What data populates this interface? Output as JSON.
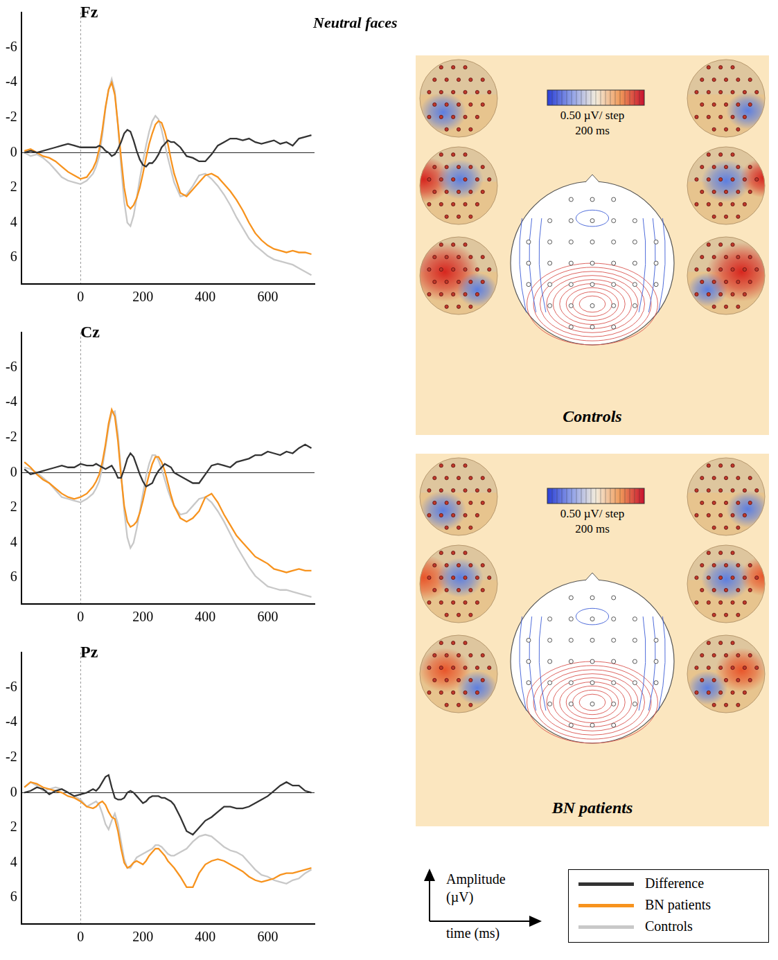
{
  "title": "Neutral faces",
  "legend": "bottom right",
  "axis_key": {
    "y": "Amplitude (µV)",
    "x": "time (ms)"
  },
  "topomaps": [
    {
      "label": "Controls",
      "scale_label": "0.50 µV/ step",
      "time": "200 ms"
    },
    {
      "label": "BN patients",
      "scale_label": "0.50 µV/ step",
      "time": "200 ms"
    }
  ],
  "chart_data": [
    {
      "type": "line",
      "title": "Fz",
      "x": [
        -180,
        -160,
        -140,
        -120,
        -100,
        -80,
        -60,
        -40,
        -20,
        0,
        20,
        40,
        50,
        60,
        70,
        80,
        90,
        100,
        110,
        120,
        130,
        140,
        150,
        160,
        170,
        180,
        190,
        200,
        210,
        220,
        230,
        240,
        250,
        260,
        270,
        280,
        290,
        300,
        320,
        340,
        360,
        380,
        400,
        420,
        440,
        460,
        480,
        500,
        520,
        540,
        560,
        580,
        600,
        620,
        640,
        660,
        680,
        700,
        720,
        740
      ],
      "xlim": [
        -190,
        750
      ],
      "xticks": [
        0,
        200,
        400,
        600
      ],
      "ylim": [
        -8,
        7.5
      ],
      "yticks": [
        -6,
        -4,
        -2,
        0,
        2,
        4,
        6
      ],
      "series": [
        {
          "name": "Difference",
          "color": "#333333",
          "values": [
            0,
            -0.1,
            0,
            -0.1,
            -0.2,
            -0.3,
            -0.4,
            -0.5,
            -0.4,
            -0.3,
            -0.3,
            -0.3,
            -0.3,
            -0.4,
            -0.3,
            -0.1,
            0,
            0.2,
            0.1,
            -0.2,
            -0.6,
            -1.1,
            -1.3,
            -1.2,
            -0.7,
            -0.1,
            0.4,
            0.7,
            0.8,
            0.6,
            0.6,
            0.4,
            0.1,
            -0.3,
            -0.5,
            -0.7,
            -0.6,
            -0.6,
            -0.3,
            0.2,
            0.3,
            0.5,
            0.5,
            0.1,
            -0.4,
            -0.6,
            -0.8,
            -0.8,
            -0.7,
            -0.8,
            -0.6,
            -0.5,
            -0.6,
            -0.7,
            -0.5,
            -0.6,
            -0.4,
            -0.8,
            -0.9,
            -1.0
          ]
        },
        {
          "name": "BN patients",
          "color": "#f7931e",
          "values": [
            -0.1,
            -0.2,
            0,
            0.2,
            0.3,
            0.5,
            0.8,
            1.1,
            1.3,
            1.5,
            1.4,
            0.9,
            0.5,
            -0.2,
            -1.3,
            -2.6,
            -3.6,
            -4.0,
            -3.3,
            -1.6,
            0.3,
            2.0,
            3.0,
            3.2,
            3.0,
            2.6,
            2.0,
            1.2,
            0.3,
            -0.5,
            -1.1,
            -1.6,
            -1.8,
            -1.7,
            -1.2,
            -0.5,
            0.4,
            1.2,
            2.3,
            2.5,
            2.1,
            1.7,
            1.3,
            1.2,
            1.4,
            1.8,
            2.2,
            2.7,
            3.3,
            4.0,
            4.6,
            5.0,
            5.3,
            5.5,
            5.6,
            5.7,
            5.6,
            5.7,
            5.7,
            5.8
          ]
        },
        {
          "name": "Controls",
          "color": "#c8c8c8",
          "values": [
            0,
            0.2,
            0.1,
            0.3,
            0.6,
            1.0,
            1.4,
            1.6,
            1.7,
            1.8,
            1.6,
            1.2,
            0.8,
            0.2,
            -1.0,
            -2.5,
            -3.6,
            -4.2,
            -3.5,
            -1.5,
            0.8,
            2.8,
            4.0,
            4.2,
            3.6,
            2.6,
            1.5,
            0.5,
            -0.4,
            -1.2,
            -1.8,
            -2.1,
            -1.9,
            -1.3,
            -0.5,
            0.3,
            1.0,
            1.7,
            2.5,
            2.4,
            1.9,
            1.3,
            1.2,
            1.5,
            1.9,
            2.4,
            3.0,
            3.7,
            4.3,
            4.9,
            5.3,
            5.6,
            5.9,
            6.1,
            6.2,
            6.3,
            6.4,
            6.6,
            6.8,
            7.0
          ]
        }
      ]
    },
    {
      "type": "line",
      "title": "Cz",
      "x": [
        -180,
        -160,
        -140,
        -120,
        -100,
        -80,
        -60,
        -40,
        -20,
        0,
        20,
        40,
        50,
        60,
        70,
        80,
        90,
        100,
        110,
        120,
        130,
        140,
        150,
        160,
        170,
        180,
        190,
        200,
        210,
        220,
        230,
        240,
        250,
        260,
        270,
        280,
        290,
        300,
        320,
        340,
        360,
        380,
        400,
        420,
        440,
        460,
        480,
        500,
        520,
        540,
        560,
        580,
        600,
        620,
        640,
        660,
        680,
        700,
        720,
        740
      ],
      "xlim": [
        -190,
        750
      ],
      "xticks": [
        0,
        200,
        400,
        600
      ],
      "ylim": [
        -8,
        7.5
      ],
      "yticks": [
        -6,
        -4,
        -2,
        0,
        2,
        4,
        6
      ],
      "series": [
        {
          "name": "Difference",
          "color": "#333333",
          "values": [
            -0.2,
            0.1,
            0,
            -0.1,
            -0.2,
            -0.3,
            -0.4,
            -0.3,
            -0.3,
            -0.5,
            -0.4,
            -0.4,
            -0.5,
            -0.4,
            -0.3,
            -0.2,
            -0.3,
            -0.4,
            -0.1,
            0.3,
            0.3,
            -0.2,
            -0.8,
            -1.1,
            -0.9,
            -0.4,
            0.1,
            0.5,
            0.8,
            0.7,
            0.6,
            0.2,
            -0.1,
            -0.3,
            -0.5,
            -0.4,
            -0.3,
            0,
            0.2,
            0.4,
            0.6,
            0.6,
            0.1,
            -0.4,
            -0.5,
            -0.4,
            -0.3,
            -0.6,
            -0.7,
            -0.8,
            -1.0,
            -1.0,
            -1.2,
            -1.1,
            -1.0,
            -1.2,
            -1.1,
            -1.4,
            -1.6,
            -1.4
          ]
        },
        {
          "name": "BN patients",
          "color": "#f7931e",
          "values": [
            -0.6,
            -0.3,
            0.1,
            0.4,
            0.6,
            0.9,
            1.2,
            1.4,
            1.5,
            1.4,
            1.2,
            0.8,
            0.5,
            0.1,
            -0.6,
            -1.6,
            -2.8,
            -3.6,
            -3.2,
            -1.8,
            0.2,
            1.9,
            2.8,
            3.1,
            3.0,
            2.8,
            2.3,
            1.6,
            0.8,
            0.1,
            -0.5,
            -0.9,
            -0.9,
            -0.6,
            -0.1,
            0.6,
            1.3,
            1.9,
            2.6,
            2.8,
            2.6,
            2.2,
            1.4,
            1.2,
            1.7,
            2.4,
            3.0,
            3.6,
            4.0,
            4.4,
            4.8,
            5.0,
            5.2,
            5.5,
            5.6,
            5.7,
            5.6,
            5.5,
            5.6,
            5.6
          ]
        },
        {
          "name": "Controls",
          "color": "#c8c8c8",
          "values": [
            -0.3,
            -0.2,
            0,
            0.3,
            0.6,
            1.0,
            1.4,
            1.5,
            1.6,
            1.7,
            1.5,
            1.2,
            0.9,
            0.5,
            -0.3,
            -1.4,
            -2.6,
            -3.4,
            -3.5,
            -2.2,
            0,
            2.2,
            3.7,
            4.3,
            4.0,
            3.2,
            2.2,
            1.2,
            0.2,
            -0.5,
            -1.0,
            -1.0,
            -0.7,
            -0.2,
            0.4,
            1.0,
            1.5,
            1.9,
            2.4,
            2.3,
            1.9,
            1.5,
            1.4,
            1.7,
            2.2,
            2.8,
            3.5,
            4.2,
            4.8,
            5.4,
            5.9,
            6.2,
            6.5,
            6.6,
            6.7,
            6.7,
            6.8,
            6.9,
            7.0,
            7.1
          ]
        }
      ]
    },
    {
      "type": "line",
      "title": "Pz",
      "x": [
        -180,
        -160,
        -140,
        -120,
        -100,
        -80,
        -60,
        -40,
        -20,
        0,
        20,
        40,
        50,
        60,
        70,
        80,
        90,
        100,
        110,
        120,
        130,
        140,
        150,
        160,
        170,
        180,
        190,
        200,
        210,
        220,
        230,
        240,
        250,
        260,
        270,
        280,
        290,
        300,
        320,
        340,
        360,
        380,
        400,
        420,
        440,
        460,
        480,
        500,
        520,
        540,
        560,
        580,
        600,
        620,
        640,
        660,
        680,
        700,
        720,
        740
      ],
      "xlim": [
        -190,
        750
      ],
      "xticks": [
        0,
        200,
        400,
        600
      ],
      "ylim": [
        -8,
        7.5
      ],
      "yticks": [
        -6,
        -4,
        -2,
        0,
        2,
        4,
        6
      ],
      "series": [
        {
          "name": "Difference",
          "color": "#333333",
          "values": [
            0,
            -0.1,
            -0.3,
            -0.2,
            0.1,
            -0.1,
            -0.2,
            0,
            0.2,
            0.1,
            0,
            -0.2,
            -0.1,
            -0.3,
            -0.6,
            -0.9,
            -1.0,
            -0.3,
            0.3,
            0.4,
            0.4,
            0.3,
            0,
            -0.1,
            0,
            0.2,
            0.4,
            0.6,
            0.5,
            0.3,
            0.2,
            0.2,
            0.2,
            0.3,
            0.3,
            0.4,
            0.5,
            0.7,
            1.4,
            2.2,
            2.4,
            2.0,
            1.6,
            1.4,
            1.1,
            0.8,
            0.8,
            0.9,
            0.9,
            0.8,
            0.6,
            0.4,
            0.2,
            -0.1,
            -0.4,
            -0.6,
            -0.4,
            -0.4,
            -0.1,
            0
          ]
        },
        {
          "name": "BN patients",
          "color": "#f7931e",
          "values": [
            -0.3,
            -0.6,
            -0.5,
            -0.3,
            -0.2,
            -0.1,
            0,
            0.2,
            0.3,
            0.5,
            0.8,
            0.9,
            0.8,
            0.6,
            0.5,
            0.7,
            1.1,
            1.4,
            1.5,
            2.2,
            3.2,
            4.0,
            4.3,
            4.2,
            4.0,
            3.9,
            4.0,
            4.1,
            3.9,
            3.6,
            3.4,
            3.2,
            3.2,
            3.4,
            3.6,
            3.9,
            4.1,
            4.3,
            4.8,
            5.4,
            5.4,
            4.6,
            4.1,
            3.9,
            3.8,
            3.9,
            4.1,
            4.3,
            4.5,
            4.8,
            5.0,
            5.1,
            5.0,
            4.9,
            4.7,
            4.6,
            4.6,
            4.5,
            4.4,
            4.3
          ]
        },
        {
          "name": "Controls",
          "color": "#c8c8c8",
          "values": [
            -0.3,
            -0.6,
            -0.4,
            -0.1,
            -0.2,
            -0.3,
            -0.2,
            0,
            0.2,
            0.4,
            0.8,
            0.6,
            0.5,
            0.7,
            1.2,
            1.8,
            2.1,
            1.6,
            1.2,
            1.8,
            2.8,
            3.8,
            4.3,
            4.3,
            4.0,
            3.7,
            3.6,
            3.5,
            3.4,
            3.3,
            3.2,
            3.0,
            3.0,
            3.1,
            3.3,
            3.5,
            3.6,
            3.6,
            3.4,
            3.2,
            2.8,
            2.5,
            2.4,
            2.5,
            2.8,
            3.1,
            3.3,
            3.4,
            3.6,
            4.0,
            4.4,
            4.7,
            4.8,
            5.0,
            5.1,
            5.2,
            5.0,
            4.9,
            4.6,
            4.4
          ]
        }
      ]
    }
  ]
}
